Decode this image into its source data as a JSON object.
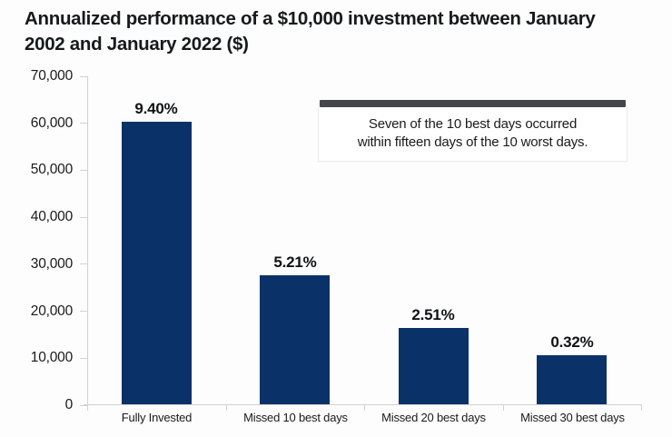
{
  "chart_data": {
    "type": "bar",
    "title_lines": [
      "Annualized performance of a $10,000 investment between January",
      "2002 and January 2022 ($)"
    ],
    "categories": [
      "Fully Invested",
      "Missed 10 best days",
      "Missed 20 best days",
      "Missed 30 best days"
    ],
    "values": [
      60300,
      27600,
      16450,
      10650
    ],
    "bar_labels": [
      "9.40%",
      "5.21%",
      "2.51%",
      "0.32%"
    ],
    "xlabel": "",
    "ylabel": "",
    "ylim": [
      0,
      70000
    ],
    "ytick_labels": [
      "70,000",
      "60,000",
      "50,000",
      "40,000",
      "30,000",
      "20,000",
      "10,000",
      "0"
    ],
    "grid": false,
    "legend": null,
    "annotation": {
      "lines": [
        "Seven of the 10 best days occurred",
        "within fifteen days of the 10 worst days."
      ]
    },
    "colors": {
      "bar": "#0a3168",
      "annotation_accent": "#43464b",
      "axis_line": "#d2d2d2",
      "text": "#1a1a1a"
    }
  }
}
